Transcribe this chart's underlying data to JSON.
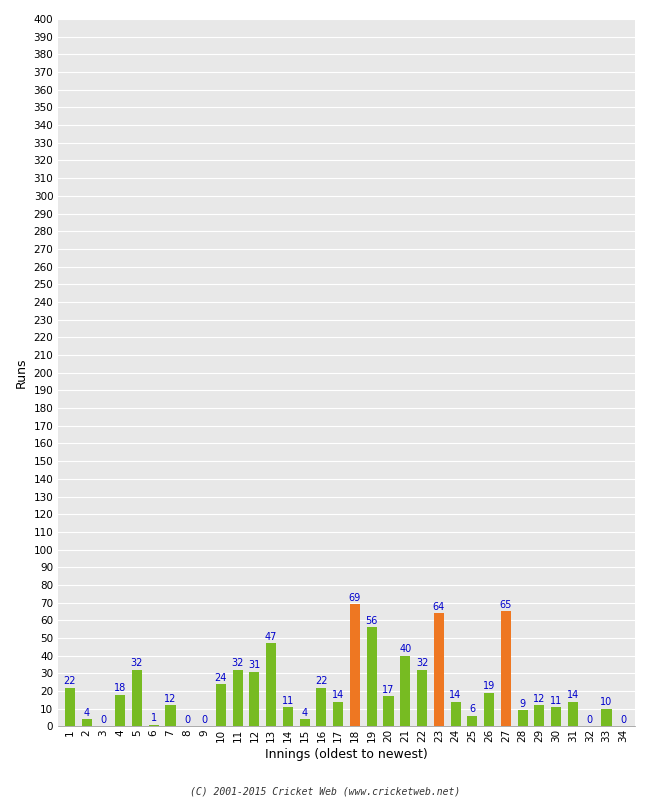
{
  "xlabel": "Innings (oldest to newest)",
  "ylabel": "Runs",
  "innings": [
    1,
    2,
    3,
    4,
    5,
    6,
    7,
    8,
    9,
    10,
    11,
    12,
    13,
    14,
    15,
    16,
    17,
    18,
    19,
    20,
    21,
    22,
    23,
    24,
    25,
    26,
    27,
    28,
    29,
    30,
    31,
    32,
    33,
    34
  ],
  "values": [
    22,
    4,
    0,
    18,
    32,
    1,
    12,
    0,
    0,
    24,
    32,
    31,
    47,
    11,
    4,
    22,
    14,
    69,
    56,
    17,
    40,
    32,
    64,
    14,
    6,
    19,
    65,
    9,
    12,
    11,
    14,
    0,
    10,
    0
  ],
  "colors": [
    "#77bb22",
    "#77bb22",
    "#77bb22",
    "#77bb22",
    "#77bb22",
    "#77bb22",
    "#77bb22",
    "#77bb22",
    "#77bb22",
    "#77bb22",
    "#77bb22",
    "#77bb22",
    "#77bb22",
    "#77bb22",
    "#77bb22",
    "#77bb22",
    "#77bb22",
    "#ee7722",
    "#77bb22",
    "#77bb22",
    "#77bb22",
    "#77bb22",
    "#ee7722",
    "#77bb22",
    "#77bb22",
    "#77bb22",
    "#ee7722",
    "#77bb22",
    "#77bb22",
    "#77bb22",
    "#77bb22",
    "#77bb22",
    "#77bb22",
    "#77bb22"
  ],
  "ylim": [
    0,
    400
  ],
  "yticks": [
    0,
    10,
    20,
    30,
    40,
    50,
    60,
    70,
    80,
    90,
    100,
    110,
    120,
    130,
    140,
    150,
    160,
    170,
    180,
    190,
    200,
    210,
    220,
    230,
    240,
    250,
    260,
    270,
    280,
    290,
    300,
    310,
    320,
    330,
    340,
    350,
    360,
    370,
    380,
    390,
    400
  ],
  "plot_bg_color": "#e8e8e8",
  "fig_bg_color": "#ffffff",
  "grid_color": "#ffffff",
  "bar_label_color": "#0000cc",
  "bar_label_fontsize": 7,
  "axis_label_fontsize": 9,
  "tick_fontsize": 7.5,
  "footer": "(C) 2001-2015 Cricket Web (www.cricketweb.net)"
}
